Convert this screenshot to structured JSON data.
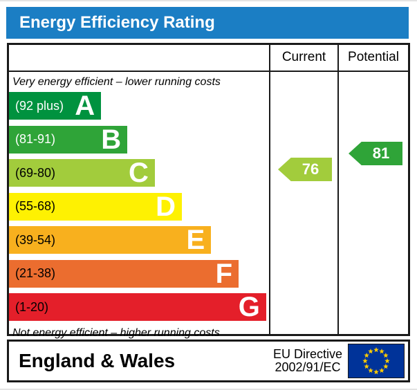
{
  "title": "Energy Efficiency Rating",
  "colors": {
    "header_blue": "#1b7ec4",
    "border_black": "#1a1a1a",
    "eu_flag_blue": "#003399",
    "eu_star_yellow": "#ffcc00"
  },
  "table": {
    "columns": [
      "Current",
      "Potential"
    ]
  },
  "chart_data": {
    "type": "bar",
    "title": "Energy Efficiency Rating",
    "top_note": "Very energy efficient – lower running costs",
    "bottom_note": "Not energy efficient – higher running costs",
    "bands": [
      {
        "letter": "A",
        "range": "(92 plus)",
        "min": 92,
        "max": 100,
        "color": "#00923f",
        "label_color": "#ffffff",
        "width_pct": 35.4
      },
      {
        "letter": "B",
        "range": "(81-91)",
        "min": 81,
        "max": 91,
        "color": "#2fa438",
        "label_color": "#ffffff",
        "width_pct": 45.5
      },
      {
        "letter": "C",
        "range": "(69-80)",
        "min": 69,
        "max": 80,
        "color": "#a2cc3c",
        "label_color": "#000000",
        "width_pct": 56.1
      },
      {
        "letter": "D",
        "range": "(55-68)",
        "min": 55,
        "max": 68,
        "color": "#fef102",
        "label_color": "#000000",
        "width_pct": 66.5
      },
      {
        "letter": "E",
        "range": "(39-54)",
        "min": 39,
        "max": 54,
        "color": "#f8b01e",
        "label_color": "#000000",
        "width_pct": 77.7
      },
      {
        "letter": "F",
        "range": "(21-38)",
        "min": 21,
        "max": 38,
        "color": "#eb6d2f",
        "label_color": "#000000",
        "width_pct": 88.3
      },
      {
        "letter": "G",
        "range": "(1-20)",
        "min": 1,
        "max": 20,
        "color": "#e41f2a",
        "label_color": "#000000",
        "width_pct": 98.9
      }
    ],
    "current": {
      "label": "Current",
      "value": 76,
      "band": "C",
      "color": "#a2cc3c"
    },
    "potential": {
      "label": "Potential",
      "value": 81,
      "band": "B",
      "color": "#2fa438"
    }
  },
  "footer": {
    "region": "England & Wales",
    "directive_line1": "EU Directive",
    "directive_line2": "2002/91/EC"
  }
}
